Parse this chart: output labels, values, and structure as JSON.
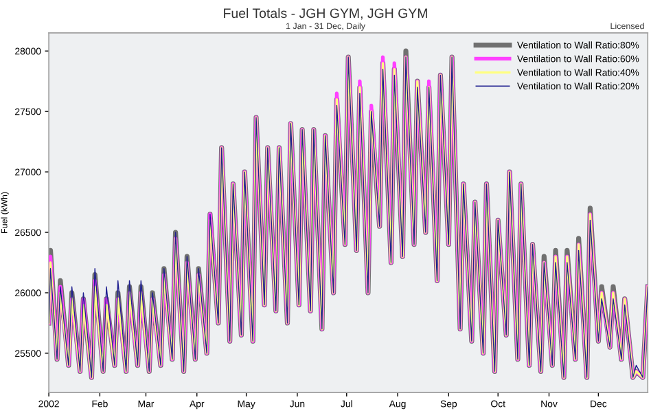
{
  "chart_data": {
    "type": "line",
    "title": "Fuel Totals - JGH GYM, JGH GYM",
    "subtitle": "1 Jan - 31 Dec, Daily",
    "ylabel": "Fuel (kWh)",
    "annotations": [
      "Licensed"
    ],
    "x": [
      "2002-01-01",
      "2002-01-02",
      "2002-01-06",
      "2002-01-08",
      "2002-01-13",
      "2002-01-15",
      "2002-01-20",
      "2002-01-22",
      "2002-01-27",
      "2002-01-29",
      "2002-02-03",
      "2002-02-05",
      "2002-02-10",
      "2002-02-12",
      "2002-02-17",
      "2002-02-19",
      "2002-02-24",
      "2002-02-26",
      "2002-03-03",
      "2002-03-05",
      "2002-03-10",
      "2002-03-12",
      "2002-03-17",
      "2002-03-19",
      "2002-03-24",
      "2002-03-26",
      "2002-03-31",
      "2002-04-02",
      "2002-04-07",
      "2002-04-09",
      "2002-04-14",
      "2002-04-16",
      "2002-04-21",
      "2002-04-23",
      "2002-04-28",
      "2002-04-30",
      "2002-05-05",
      "2002-05-07",
      "2002-05-12",
      "2002-05-14",
      "2002-05-19",
      "2002-05-21",
      "2002-05-26",
      "2002-05-28",
      "2002-06-02",
      "2002-06-04",
      "2002-06-09",
      "2002-06-11",
      "2002-06-16",
      "2002-06-18",
      "2002-06-23",
      "2002-06-25",
      "2002-06-30",
      "2002-07-02",
      "2002-07-07",
      "2002-07-09",
      "2002-07-14",
      "2002-07-16",
      "2002-07-21",
      "2002-07-23",
      "2002-07-28",
      "2002-07-30",
      "2002-08-04",
      "2002-08-06",
      "2002-08-11",
      "2002-08-13",
      "2002-08-18",
      "2002-08-20",
      "2002-08-25",
      "2002-08-27",
      "2002-09-01",
      "2002-09-03",
      "2002-09-08",
      "2002-09-10",
      "2002-09-15",
      "2002-09-17",
      "2002-09-22",
      "2002-09-24",
      "2002-09-29",
      "2002-10-01",
      "2002-10-06",
      "2002-10-08",
      "2002-10-13",
      "2002-10-15",
      "2002-10-20",
      "2002-10-22",
      "2002-10-27",
      "2002-10-29",
      "2002-11-03",
      "2002-11-05",
      "2002-11-10",
      "2002-11-12",
      "2002-11-17",
      "2002-11-19",
      "2002-11-24",
      "2002-11-26",
      "2002-12-01",
      "2002-12-03",
      "2002-12-08",
      "2002-12-10",
      "2002-12-15",
      "2002-12-17",
      "2002-12-22",
      "2002-12-24",
      "2002-12-28",
      "2002-12-31"
    ],
    "series": [
      {
        "name": "Ventilation to Wall Ratio:80%",
        "color": "#707070",
        "values": [
          25750,
          26350,
          25450,
          26100,
          25400,
          26000,
          25350,
          25950,
          25300,
          26150,
          25350,
          25950,
          25400,
          26000,
          25350,
          26050,
          25400,
          26050,
          25350,
          26000,
          25400,
          26200,
          25450,
          26500,
          25350,
          26300,
          25450,
          26200,
          25500,
          26650,
          25750,
          27200,
          25600,
          26900,
          25650,
          27000,
          25600,
          27450,
          25900,
          27200,
          25850,
          27200,
          25750,
          27400,
          25900,
          27350,
          25850,
          27350,
          25700,
          27300,
          26000,
          27600,
          26400,
          27950,
          26350,
          27700,
          26000,
          27500,
          26550,
          27900,
          26250,
          27850,
          26300,
          28000,
          26400,
          27750,
          26500,
          27700,
          26100,
          27800,
          26400,
          27950,
          25700,
          26900,
          25600,
          26750,
          25500,
          26900,
          25350,
          26600,
          25650,
          27000,
          25450,
          26900,
          25400,
          26400,
          25350,
          26300,
          25400,
          26350,
          25300,
          26350,
          25450,
          26450,
          25300,
          26700,
          25600,
          26050,
          25550,
          26050,
          25450,
          25950,
          25300,
          25350,
          25300,
          26050
        ]
      },
      {
        "name": "Ventilation to Wall Ratio:60%",
        "color": "#ff40ff",
        "values": [
          25750,
          26300,
          25450,
          26050,
          25400,
          25950,
          25350,
          25950,
          25300,
          26100,
          25350,
          25950,
          25400,
          25950,
          25350,
          26000,
          25400,
          26000,
          25350,
          25950,
          25400,
          26150,
          25450,
          26450,
          25350,
          26250,
          25450,
          26150,
          25500,
          26650,
          25750,
          27200,
          25600,
          26900,
          25650,
          27000,
          25600,
          27450,
          25900,
          27200,
          25850,
          27200,
          25750,
          27400,
          25900,
          27350,
          25850,
          27350,
          25700,
          27300,
          26000,
          27650,
          26400,
          27950,
          26350,
          27750,
          26000,
          27550,
          26550,
          27950,
          26250,
          27900,
          26300,
          27950,
          26400,
          27750,
          26500,
          27750,
          26100,
          27800,
          26400,
          27950,
          25700,
          26900,
          25600,
          26750,
          25500,
          26900,
          25350,
          26600,
          25650,
          27000,
          25450,
          26900,
          25400,
          26400,
          25350,
          26250,
          25400,
          26300,
          25300,
          26300,
          25450,
          26400,
          25300,
          26650,
          25600,
          26000,
          25550,
          26000,
          25450,
          25950,
          25300,
          25350,
          25300,
          26050
        ]
      },
      {
        "name": "Ventilation to Wall Ratio:40%",
        "color": "#ffff80",
        "values": [
          25750,
          26250,
          25450,
          26000,
          25400,
          25950,
          25350,
          25900,
          25300,
          26050,
          25350,
          25900,
          25400,
          25950,
          25350,
          26000,
          25400,
          26000,
          25350,
          25950,
          25400,
          26150,
          25450,
          26450,
          25350,
          26250,
          25450,
          26150,
          25500,
          26600,
          25750,
          27200,
          25600,
          26900,
          25650,
          27000,
          25600,
          27450,
          25900,
          27200,
          25850,
          27200,
          25750,
          27400,
          25900,
          27350,
          25850,
          27350,
          25700,
          27300,
          26000,
          27600,
          26400,
          27950,
          26350,
          27700,
          26000,
          27500,
          26550,
          27900,
          26250,
          27850,
          26300,
          27950,
          26400,
          27750,
          26500,
          27700,
          26100,
          27800,
          26400,
          27950,
          25700,
          26900,
          25600,
          26750,
          25500,
          26900,
          25350,
          26600,
          25650,
          27000,
          25450,
          26900,
          25400,
          26400,
          25350,
          26250,
          25400,
          26300,
          25300,
          26300,
          25450,
          26400,
          25300,
          26650,
          25600,
          26000,
          25550,
          26000,
          25450,
          25950,
          25300,
          25350,
          25300,
          26050
        ]
      },
      {
        "name": "Ventilation to Wall Ratio:20%",
        "color": "#202090",
        "values": [
          25750,
          26200,
          25450,
          26050,
          25400,
          26050,
          25350,
          26000,
          25300,
          26200,
          25350,
          26050,
          25400,
          26100,
          25350,
          26100,
          25400,
          26100,
          25350,
          26000,
          25400,
          26200,
          25450,
          26500,
          25350,
          26300,
          25450,
          26200,
          25500,
          26650,
          25750,
          27200,
          25600,
          26900,
          25650,
          27000,
          25600,
          27450,
          25900,
          27200,
          25850,
          27200,
          25750,
          27400,
          25900,
          27350,
          25850,
          27350,
          25700,
          27300,
          26000,
          27550,
          26400,
          27950,
          26350,
          27650,
          26000,
          27500,
          26550,
          27850,
          26250,
          27800,
          26300,
          27950,
          26400,
          27700,
          26500,
          27700,
          26100,
          27800,
          26400,
          27950,
          25700,
          26900,
          25600,
          26750,
          25500,
          26900,
          25350,
          26600,
          25650,
          27000,
          25450,
          26900,
          25400,
          26400,
          25350,
          26250,
          25400,
          26250,
          25300,
          26250,
          25450,
          26350,
          25300,
          26600,
          25600,
          25950,
          25550,
          25950,
          25450,
          25900,
          25300,
          25400,
          25300,
          26050
        ]
      }
    ],
    "xlim": [
      "2002-01-01",
      "2002-12-31"
    ],
    "xticks": [
      {
        "value": "2002-01-01",
        "label": "2002"
      },
      {
        "value": "2002-02-01",
        "label": "Feb"
      },
      {
        "value": "2002-03-01",
        "label": "Mar"
      },
      {
        "value": "2002-04-01",
        "label": "Apr"
      },
      {
        "value": "2002-05-01",
        "label": "May"
      },
      {
        "value": "2002-06-01",
        "label": "Jun"
      },
      {
        "value": "2002-07-01",
        "label": "Jul"
      },
      {
        "value": "2002-08-01",
        "label": "Aug"
      },
      {
        "value": "2002-09-01",
        "label": "Sep"
      },
      {
        "value": "2002-10-01",
        "label": "Oct"
      },
      {
        "value": "2002-11-01",
        "label": "Nov"
      },
      {
        "value": "2002-12-01",
        "label": "Dec"
      }
    ],
    "ylim": [
      25175,
      28150
    ],
    "yticks": [
      25500,
      26000,
      26500,
      27000,
      27500,
      28000
    ],
    "grid": false,
    "legend": "top right",
    "marker": "none",
    "line_style": "solid"
  }
}
